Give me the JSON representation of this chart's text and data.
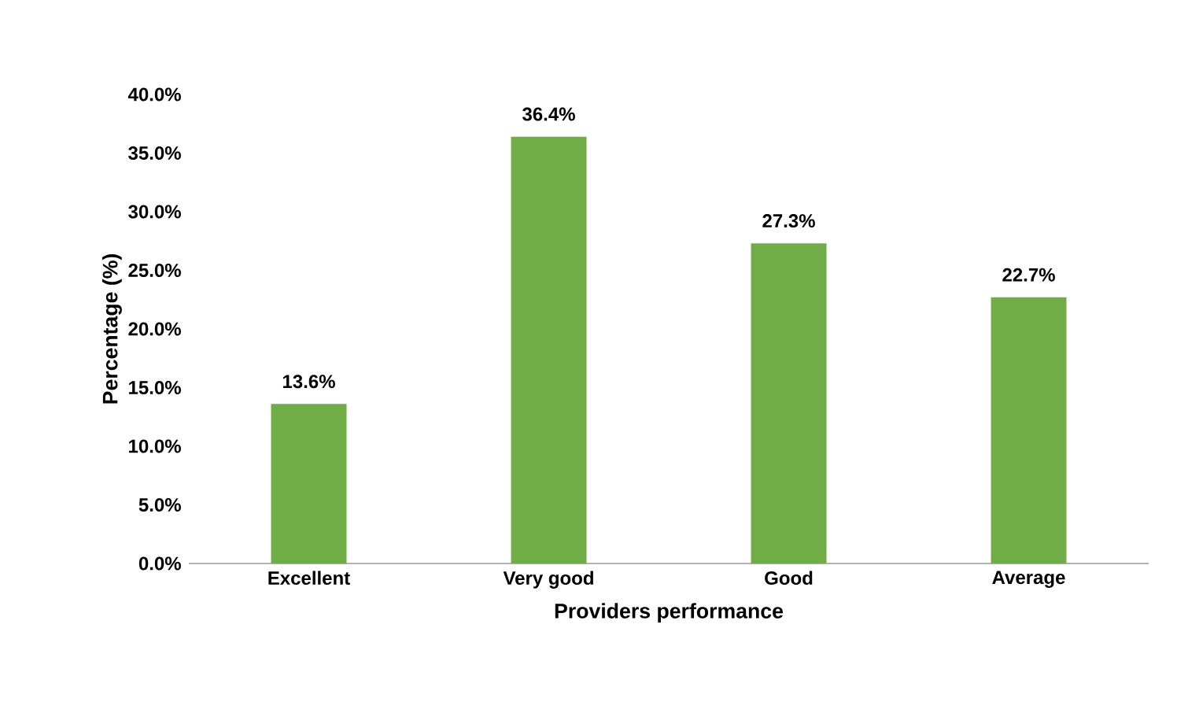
{
  "chart_data": {
    "type": "bar",
    "categories": [
      "Excellent",
      "Very good",
      "Good",
      "Average"
    ],
    "values": [
      13.6,
      36.4,
      27.3,
      22.7
    ],
    "value_labels": [
      "13.6%",
      "36.4%",
      "27.3%",
      "22.7%"
    ],
    "color": "#70ad47",
    "xlabel": "Providers performance",
    "ylabel": "Percentage (%)",
    "ylim": [
      0,
      40
    ],
    "yticks": [
      {
        "value": 0,
        "label": "0.0%"
      },
      {
        "value": 5,
        "label": "5.0%"
      },
      {
        "value": 10,
        "label": "10.0%"
      },
      {
        "value": 15,
        "label": "15.0%"
      },
      {
        "value": 20,
        "label": "20.0%"
      },
      {
        "value": 25,
        "label": "25.0%"
      },
      {
        "value": 30,
        "label": "30.0%"
      },
      {
        "value": 35,
        "label": "35.0%"
      },
      {
        "value": 40,
        "label": "40.0%"
      }
    ],
    "grid": false
  }
}
